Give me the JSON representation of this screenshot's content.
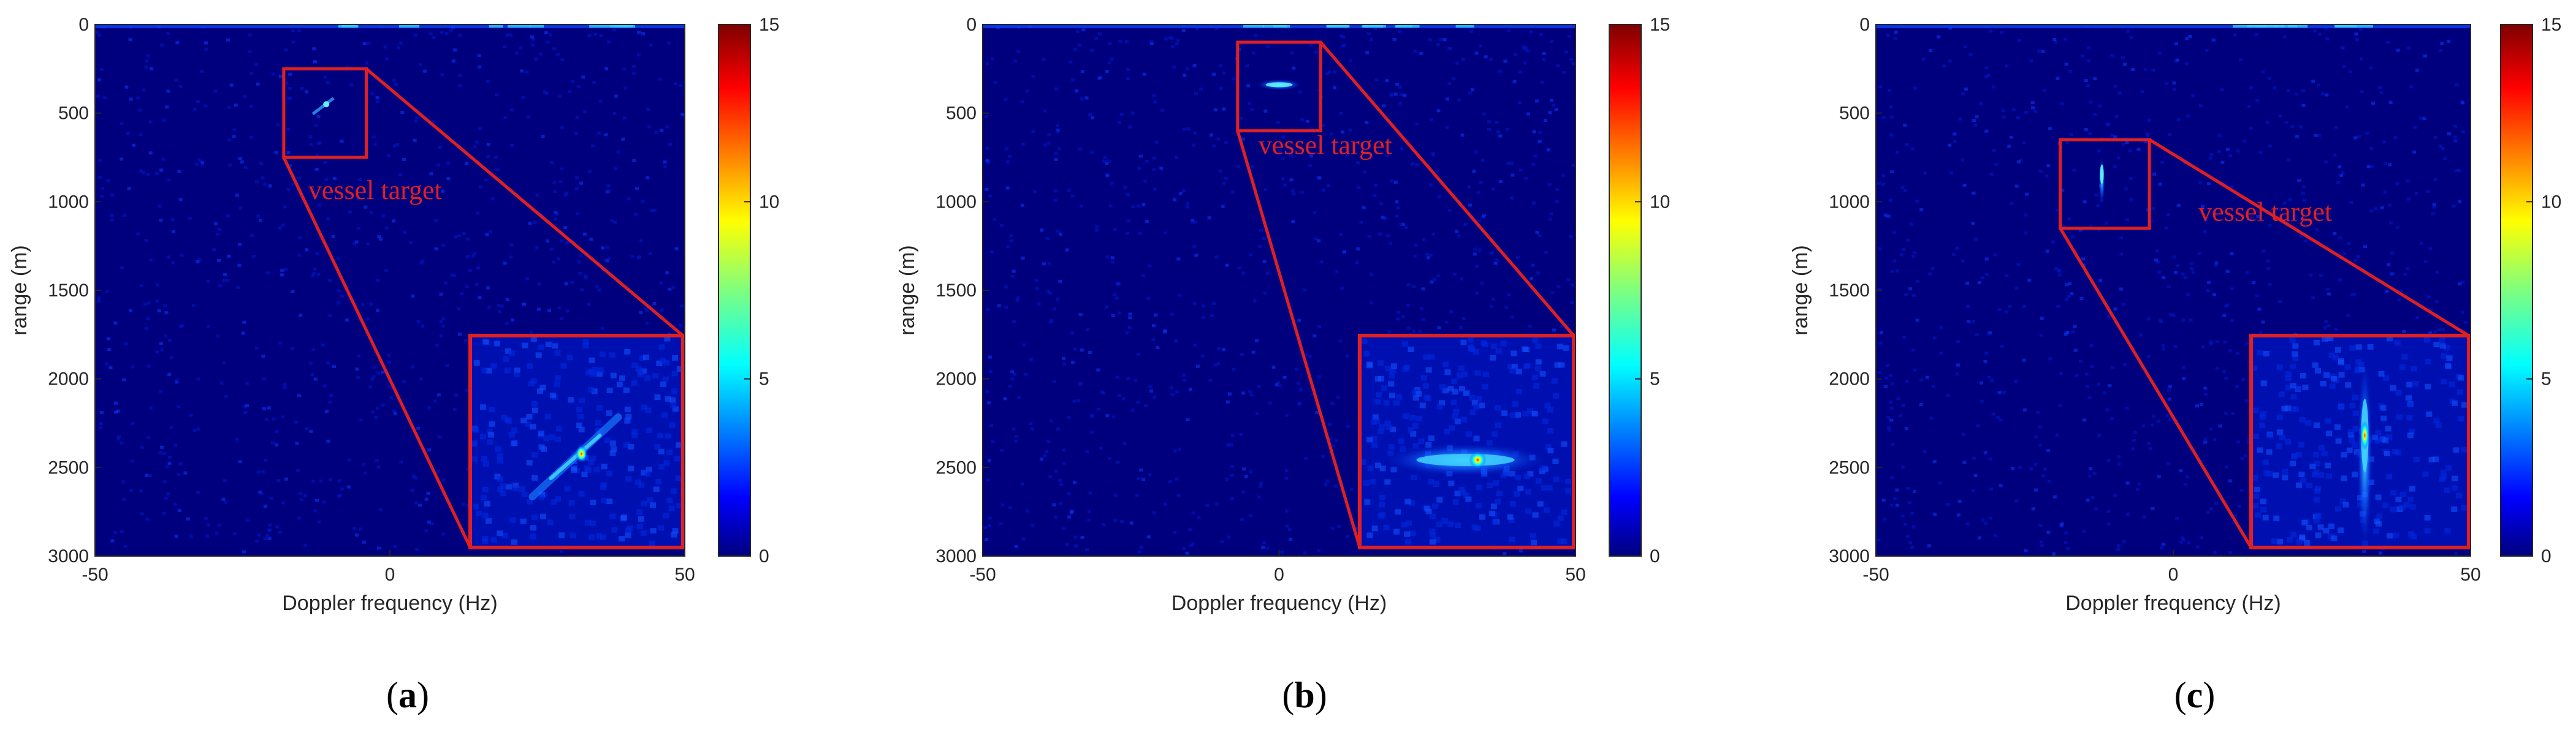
{
  "chart_data": [
    {
      "type": "heatmap",
      "panel_label": "a",
      "xlabel": "Doppler frequency (Hz)",
      "ylabel": "range (m)",
      "xlim": [
        -50,
        50
      ],
      "ylim": [
        0,
        3000
      ],
      "y_reversed": true,
      "x_ticks": [
        "-50",
        "0",
        "50"
      ],
      "y_ticks": [
        "0",
        "500",
        "1000",
        "1500",
        "2000",
        "2500",
        "3000"
      ],
      "colorbar": {
        "colormap": "jet",
        "range": [
          0,
          15
        ],
        "ticks": [
          "0",
          "5",
          "10",
          "15"
        ]
      },
      "annotation": {
        "text": "vessel target",
        "x_range": [
          -18,
          -4
        ],
        "y_range": [
          250,
          750
        ]
      },
      "target": {
        "doppler_hz": -11,
        "range_m": 450,
        "shape": "diagonal-streak"
      }
    },
    {
      "type": "heatmap",
      "panel_label": "b",
      "xlabel": "Doppler frequency (Hz)",
      "ylabel": "range (m)",
      "xlim": [
        -50,
        50
      ],
      "ylim": [
        0,
        3000
      ],
      "y_reversed": true,
      "x_ticks": [
        "-50",
        "0",
        "50"
      ],
      "y_ticks": [
        "0",
        "500",
        "1000",
        "1500",
        "2000",
        "2500",
        "3000"
      ],
      "colorbar": {
        "colormap": "jet",
        "range": [
          0,
          15
        ],
        "ticks": [
          "0",
          "5",
          "10",
          "15"
        ]
      },
      "annotation": {
        "text": "vessel target",
        "x_range": [
          -7,
          7
        ],
        "y_range": [
          100,
          600
        ]
      },
      "target": {
        "doppler_hz": 0,
        "range_m": 340,
        "shape": "horizontal-streak"
      }
    },
    {
      "type": "heatmap",
      "panel_label": "c",
      "xlabel": "Doppler frequency (Hz)",
      "ylabel": "range (m)",
      "xlim": [
        -50,
        50
      ],
      "ylim": [
        0,
        3000
      ],
      "y_reversed": true,
      "x_ticks": [
        "-50",
        "0",
        "50"
      ],
      "y_ticks": [
        "0",
        "500",
        "1000",
        "1500",
        "2000",
        "2500",
        "3000"
      ],
      "colorbar": {
        "colormap": "jet",
        "range": [
          0,
          15
        ],
        "ticks": [
          "0",
          "5",
          "10",
          "15"
        ]
      },
      "annotation": {
        "text": "vessel target",
        "x_range": [
          -19,
          -4
        ],
        "y_range": [
          650,
          1150
        ]
      },
      "target": {
        "doppler_hz": -12,
        "range_m": 880,
        "shape": "vertical-streak"
      }
    }
  ],
  "colors": {
    "background_dark": "#00007f",
    "annotation_red": "#e02020"
  }
}
